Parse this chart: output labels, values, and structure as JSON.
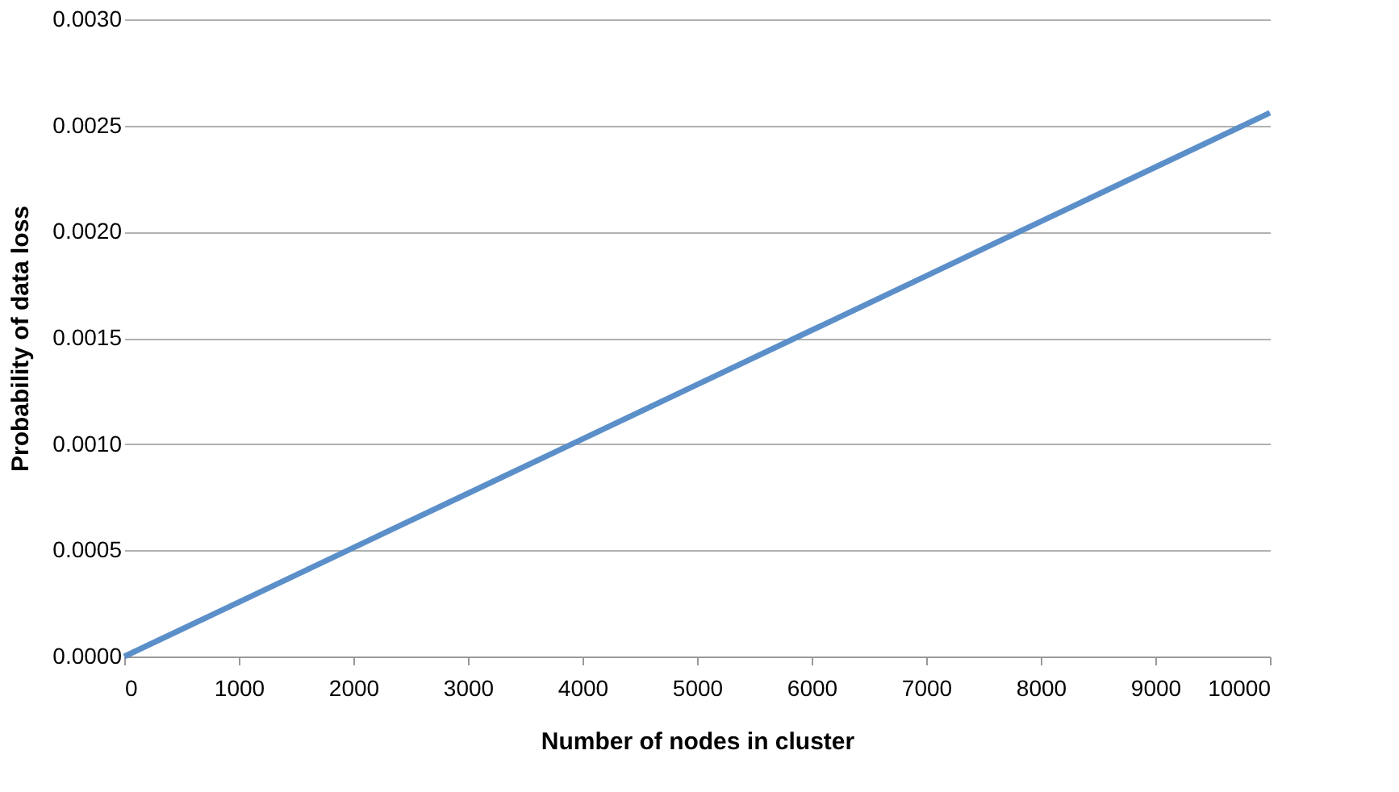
{
  "chart_data": {
    "type": "line",
    "xlabel": "Number of nodes in cluster",
    "ylabel": "Probability of data loss",
    "x": [
      0,
      1000,
      2000,
      3000,
      4000,
      5000,
      6000,
      7000,
      8000,
      9000,
      10000
    ],
    "series": [
      {
        "color": "#5b8fc9",
        "values": [
          0,
          0.000256,
          0.000512,
          0.000768,
          0.001024,
          0.00128,
          0.001536,
          0.001792,
          0.002048,
          0.002304,
          0.00256
        ]
      }
    ],
    "xlim": [
      0,
      10000
    ],
    "xticks": [
      0,
      1000,
      2000,
      3000,
      4000,
      5000,
      6000,
      7000,
      8000,
      9000,
      10000
    ],
    "ylim": [
      0,
      0.003
    ],
    "yticks": [
      {
        "value": 0,
        "label": "0.0000"
      },
      {
        "value": 0.0005,
        "label": "0.0005"
      },
      {
        "value": 0.001,
        "label": "0.0010"
      },
      {
        "value": 0.0015,
        "label": "0.0015"
      },
      {
        "value": 0.002,
        "label": "0.0020"
      },
      {
        "value": 0.0025,
        "label": "0.0025"
      },
      {
        "value": 0.003,
        "label": "0.0030"
      }
    ],
    "grid": "y",
    "marker": "none",
    "line_style": "solid"
  }
}
